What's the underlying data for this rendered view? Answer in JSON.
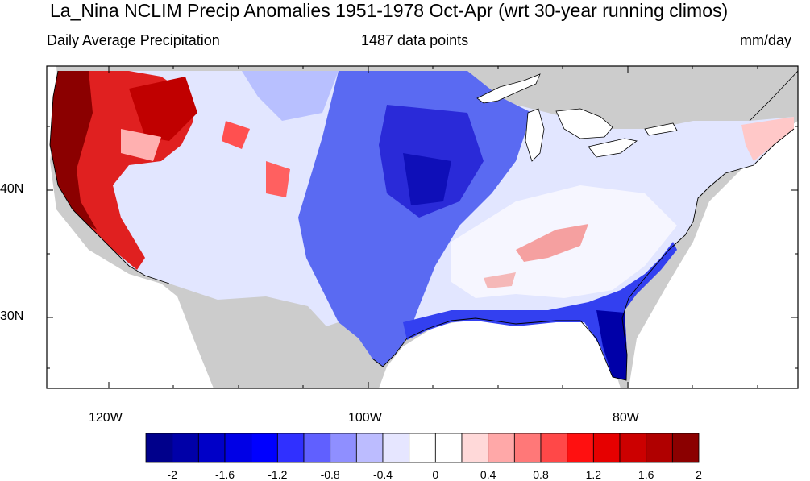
{
  "title": "La_Nina NCLIM Precip Anomalies 1951-1978 Oct-Apr (wrt 30-year running climos)",
  "subtitle_left": "Daily Average Precipitation",
  "subtitle_center": "1487 data points",
  "subtitle_right": "mm/day",
  "lat_labels": [
    "40N",
    "30N"
  ],
  "lon_labels": [
    "120W",
    "100W",
    "80W"
  ],
  "colorbar": {
    "colors": [
      "#00008b",
      "#0000a8",
      "#0000c8",
      "#0000e6",
      "#0000ff",
      "#3030ff",
      "#6060ff",
      "#8f8fff",
      "#bcbcff",
      "#e6e6ff",
      "#ffffff",
      "#ffffff",
      "#ffd9d9",
      "#ffa8a8",
      "#ff7878",
      "#ff4848",
      "#ff1010",
      "#e60000",
      "#cc0000",
      "#b00000",
      "#8b0000"
    ],
    "tick_labels": [
      "-2",
      "-1.6",
      "-1.2",
      "-0.8",
      "-0.4",
      "0",
      "0.4",
      "0.8",
      "1.2",
      "1.6",
      "2"
    ]
  },
  "map_colors": {
    "land_masked": "#cccccc",
    "water": "#ffffff",
    "strong_negative": "#0000c0",
    "negative": "#4a5cf0",
    "weak_negative": "#c4ccff",
    "positive": "#f08080",
    "strong_positive": "#990000"
  }
}
